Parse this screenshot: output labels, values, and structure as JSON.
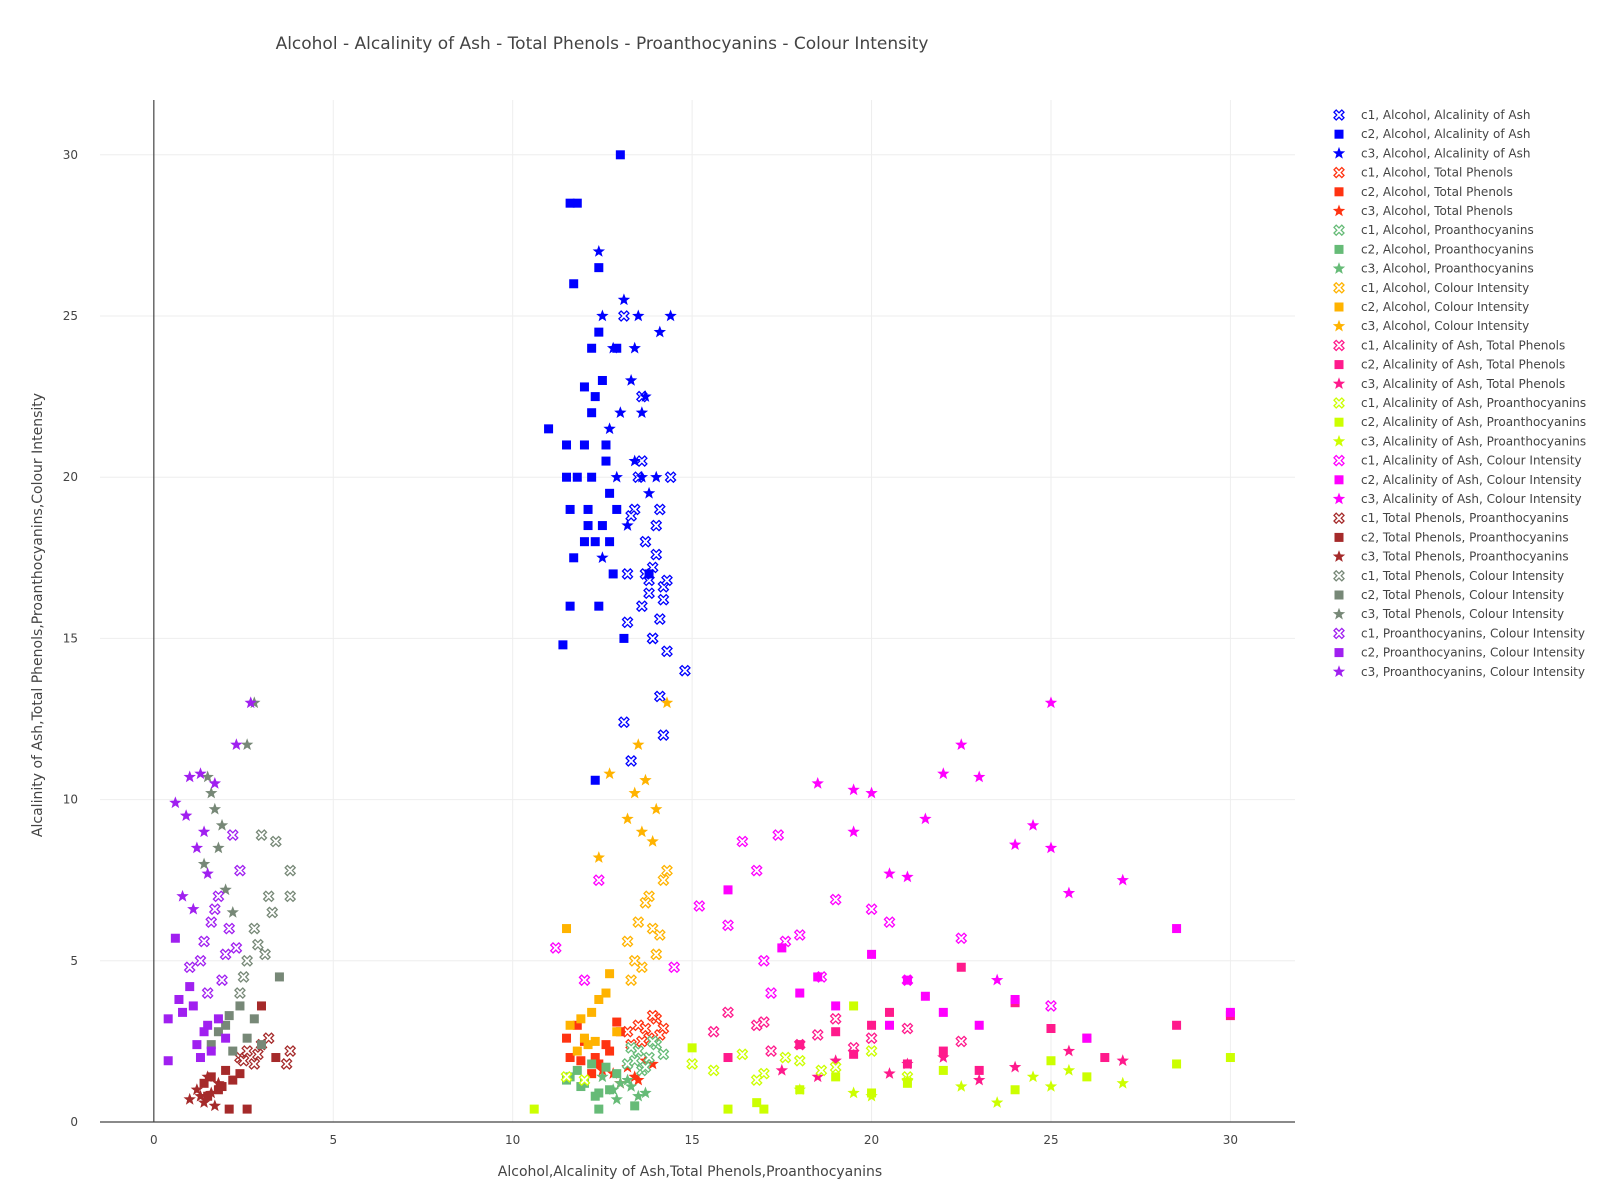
{
  "chart_data": {
    "type": "scatter",
    "title": "Alcohol - Alcalinity of Ash - Total Phenols - Proanthocyanins - Colour Intensity",
    "xlabel": "Alcohol,Alcalinity of Ash,Total Phenols,Proanthocyanins",
    "ylabel": "Alcalinity of Ash,Total Phenols,Proanthocyanins,Colour Intensity",
    "xlim": [
      -1.5,
      31.8
    ],
    "ylim": [
      0,
      31.7
    ],
    "x_ticks": [
      0,
      5,
      10,
      15,
      20,
      25,
      30
    ],
    "y_ticks": [
      0,
      5,
      10,
      15,
      20,
      25,
      30
    ],
    "grid": true,
    "legend_position": "right",
    "series": [
      {
        "name": "c1, Alcohol, Alcalinity of Ash",
        "color": "#0000ff",
        "marker": "x-open",
        "x": [
          13.1,
          13.2,
          13.6,
          13.8,
          13.9,
          14.1,
          14.2,
          13.4,
          13.5,
          13.7,
          13.8,
          14.0,
          14.1,
          14.3,
          13.9,
          14.2,
          13.3,
          13.6,
          14.1,
          13.2,
          13.7,
          14.0,
          14.4,
          13.3,
          14.8,
          14.2,
          14.3,
          13.1,
          13.6,
          13.9
        ],
        "y": [
          25.0,
          17.0,
          16.0,
          16.8,
          15.0,
          13.2,
          12.0,
          19.0,
          20.0,
          18.0,
          16.4,
          17.6,
          15.6,
          14.6,
          17.2,
          16.6,
          11.2,
          20.5,
          19.0,
          15.5,
          17.0,
          18.5,
          20.0,
          18.8,
          14.0,
          16.2,
          16.8,
          12.4,
          22.5,
          15.0
        ]
      },
      {
        "name": "c2, Alcohol, Alcalinity of Ash",
        "color": "#0000ff",
        "marker": "square",
        "x": [
          13.0,
          11.6,
          11.8,
          12.4,
          11.7,
          12.2,
          12.4,
          12.0,
          12.5,
          12.3,
          11.0,
          11.5,
          12.0,
          12.6,
          12.2,
          11.8,
          12.7,
          12.9,
          11.6,
          12.1,
          12.5,
          12.3,
          12.0,
          11.7,
          12.8,
          12.4,
          13.1,
          11.4,
          12.7,
          13.8,
          12.3,
          11.5,
          12.6,
          12.2,
          12.9,
          12.1,
          11.6
        ],
        "y": [
          30.0,
          28.5,
          28.5,
          26.5,
          26.0,
          24.0,
          24.5,
          22.8,
          23.0,
          22.5,
          21.5,
          21.0,
          21.0,
          20.5,
          20.0,
          20.0,
          19.5,
          19.0,
          19.0,
          18.5,
          18.5,
          18.0,
          18.0,
          17.5,
          17.0,
          16.0,
          15.0,
          14.8,
          18.0,
          17.0,
          10.6,
          20.0,
          21.0,
          22.0,
          24.0,
          19.0,
          16.0
        ],
        "_note": ""
      },
      {
        "name": "c3, Alcohol, Alcalinity of Ash",
        "color": "#0000ff",
        "marker": "star",
        "x": [
          12.4,
          13.1,
          12.5,
          13.5,
          14.4,
          12.8,
          13.4,
          13.7,
          13.0,
          13.3,
          14.1,
          13.6,
          12.7,
          13.2,
          12.9,
          12.5,
          13.8,
          14.0,
          13.4,
          13.6
        ],
        "y": [
          27.0,
          25.5,
          25.0,
          25.0,
          25.0,
          24.0,
          24.0,
          22.5,
          22.0,
          23.0,
          24.5,
          20.0,
          21.5,
          18.5,
          20.0,
          17.5,
          19.5,
          20.0,
          20.5,
          22.0
        ]
      },
      {
        "name": "c1, Alcohol, Total Phenols",
        "color": "#ff3311",
        "marker": "x-open",
        "x": [
          13.2,
          13.5,
          13.8,
          14.0,
          14.2,
          13.6,
          13.9,
          14.1,
          13.3,
          13.7
        ],
        "y": [
          2.8,
          3.0,
          2.6,
          3.2,
          2.9,
          2.5,
          3.3,
          2.7,
          2.4,
          2.9
        ]
      },
      {
        "name": "c2, Alcohol, Total Phenols",
        "color": "#ff3311",
        "marker": "square",
        "x": [
          11.6,
          12.0,
          12.4,
          11.8,
          12.7,
          13.0,
          12.2,
          11.5,
          12.9,
          12.3,
          11.9,
          12.6
        ],
        "y": [
          2.0,
          2.5,
          1.8,
          3.0,
          2.2,
          2.8,
          1.5,
          2.6,
          3.1,
          2.0,
          1.9,
          2.4
        ]
      },
      {
        "name": "c3, Alcohol, Total Phenols",
        "color": "#ff3311",
        "marker": "star",
        "x": [
          12.8,
          13.2,
          13.5,
          13.7,
          12.5,
          13.0,
          13.4,
          13.9
        ],
        "y": [
          1.5,
          1.7,
          1.3,
          1.9,
          1.6,
          1.2,
          1.4,
          1.8
        ]
      },
      {
        "name": "c1, Alcohol, Proanthocyanins",
        "color": "#66bb77",
        "marker": "x-open",
        "x": [
          13.2,
          13.5,
          13.8,
          14.0,
          13.6,
          14.2,
          13.4,
          13.9,
          13.3,
          13.7
        ],
        "y": [
          1.8,
          2.2,
          2.0,
          2.4,
          1.6,
          2.1,
          1.9,
          2.5,
          2.3,
          1.7
        ]
      },
      {
        "name": "c2, Alcohol, Proanthocyanins",
        "color": "#66bb77",
        "marker": "square",
        "x": [
          11.6,
          12.0,
          12.4,
          11.8,
          12.7,
          12.2,
          11.5,
          12.9,
          12.3,
          11.9,
          12.6,
          13.4,
          12.4
        ],
        "y": [
          1.4,
          1.2,
          0.9,
          1.6,
          1.0,
          1.8,
          1.3,
          1.5,
          0.8,
          1.1,
          1.7,
          0.5,
          0.4
        ]
      },
      {
        "name": "c3, Alcohol, Proanthocyanins",
        "color": "#66bb77",
        "marker": "star",
        "x": [
          12.8,
          13.2,
          13.5,
          13.0,
          12.5,
          13.7,
          12.9,
          13.3
        ],
        "y": [
          1.0,
          1.3,
          0.8,
          1.2,
          1.4,
          0.9,
          0.7,
          1.1
        ]
      },
      {
        "name": "c1, Alcohol, Colour Intensity",
        "color": "#ffb300",
        "marker": "x-open",
        "x": [
          13.2,
          13.5,
          13.8,
          14.0,
          14.2,
          13.6,
          13.9,
          14.1,
          13.3,
          13.7,
          14.3,
          13.4
        ],
        "y": [
          5.6,
          6.2,
          7.0,
          5.2,
          7.5,
          4.8,
          6.0,
          5.8,
          4.4,
          6.8,
          7.8,
          5.0
        ]
      },
      {
        "name": "c2, Alcohol, Colour Intensity",
        "color": "#ffb300",
        "marker": "square",
        "x": [
          11.6,
          12.0,
          12.4,
          11.8,
          12.7,
          12.2,
          11.5,
          12.9,
          12.3,
          11.9,
          12.6,
          12.1
        ],
        "y": [
          3.0,
          2.6,
          3.8,
          2.2,
          4.6,
          3.4,
          6.0,
          2.8,
          2.5,
          3.2,
          4.0,
          2.4
        ]
      },
      {
        "name": "c3, Alcohol, Colour Intensity",
        "color": "#ffb300",
        "marker": "star",
        "x": [
          14.3,
          13.5,
          13.7,
          13.4,
          14.0,
          12.7,
          13.2,
          13.6,
          12.4,
          13.9
        ],
        "y": [
          13.0,
          11.7,
          10.6,
          10.2,
          9.7,
          10.8,
          9.4,
          9.0,
          8.2,
          8.7
        ]
      },
      {
        "name": "c1, Alcalinity of Ash, Total Phenols",
        "color": "#ff1a8c",
        "marker": "x-open",
        "x": [
          15.6,
          16.8,
          18.0,
          19.0,
          20.0,
          21.0,
          16.0,
          17.2,
          18.5,
          22.5,
          17.0,
          19.5
        ],
        "y": [
          2.8,
          3.0,
          2.4,
          3.2,
          2.6,
          2.9,
          3.4,
          2.2,
          2.7,
          2.5,
          3.1,
          2.3
        ]
      },
      {
        "name": "c2, Alcalinity of Ash, Total Phenols",
        "color": "#ff1a8c",
        "marker": "square",
        "x": [
          16.0,
          18.0,
          19.0,
          20.0,
          21.0,
          22.0,
          23.0,
          24.0,
          25.0,
          26.0,
          26.5,
          28.5,
          30.0,
          22.5,
          19.5,
          20.5
        ],
        "y": [
          2.0,
          2.4,
          2.8,
          3.0,
          1.8,
          2.2,
          1.6,
          3.7,
          2.9,
          2.6,
          2.0,
          3.0,
          3.3,
          4.8,
          2.1,
          3.4
        ]
      },
      {
        "name": "c3, Alcalinity of Ash, Total Phenols",
        "color": "#ff1a8c",
        "marker": "star",
        "x": [
          17.5,
          19.0,
          20.5,
          22.0,
          24.0,
          25.5,
          27.0,
          18.5,
          21.0,
          23.0
        ],
        "y": [
          1.6,
          1.9,
          1.5,
          2.0,
          1.7,
          2.2,
          1.9,
          1.4,
          1.8,
          1.3
        ]
      },
      {
        "name": "c1, Alcalinity of Ash, Proanthocyanins",
        "color": "#ccff00",
        "marker": "x-open",
        "x": [
          15.0,
          15.6,
          16.4,
          17.0,
          18.0,
          19.0,
          20.0,
          21.0,
          16.8,
          17.6,
          18.6,
          11.5,
          12.0
        ],
        "y": [
          1.8,
          1.6,
          2.1,
          1.5,
          1.9,
          1.7,
          2.2,
          1.4,
          1.3,
          2.0,
          1.6,
          1.4,
          1.3
        ]
      },
      {
        "name": "c2, Alcalinity of Ash, Proanthocyanins",
        "color": "#ccff00",
        "marker": "square",
        "x": [
          10.6,
          15.0,
          16.0,
          16.8,
          17.0,
          18.0,
          19.0,
          19.5,
          20.0,
          21.0,
          22.0,
          24.0,
          25.0,
          26.0,
          28.5,
          30.0
        ],
        "y": [
          0.4,
          2.3,
          0.4,
          0.6,
          0.4,
          1.0,
          1.4,
          3.6,
          0.9,
          1.2,
          1.6,
          1.0,
          1.9,
          1.4,
          1.8,
          2.0
        ]
      },
      {
        "name": "c3, Alcalinity of Ash, Proanthocyanins",
        "color": "#ccff00",
        "marker": "star",
        "x": [
          18.0,
          19.5,
          21.0,
          22.5,
          23.5,
          24.5,
          25.0,
          25.5,
          27.0,
          20.0
        ],
        "y": [
          1.0,
          0.9,
          1.3,
          1.1,
          0.6,
          1.4,
          1.1,
          1.6,
          1.2,
          0.8
        ]
      },
      {
        "name": "c1, Alcalinity of Ash, Colour Intensity",
        "color": "#ff00ff",
        "marker": "x-open",
        "x": [
          11.2,
          12.0,
          12.4,
          15.2,
          16.0,
          16.4,
          16.8,
          17.0,
          17.4,
          17.6,
          18.0,
          18.6,
          19.0,
          20.0,
          20.5,
          21.0,
          22.5,
          25.0,
          14.5,
          17.2
        ],
        "y": [
          5.4,
          4.4,
          7.5,
          6.7,
          6.1,
          8.7,
          7.8,
          5.0,
          8.9,
          5.6,
          5.8,
          4.5,
          6.9,
          6.6,
          6.2,
          4.4,
          5.7,
          3.6,
          4.8,
          4.0
        ]
      },
      {
        "name": "c2, Alcalinity of Ash, Colour Intensity",
        "color": "#ff00ff",
        "marker": "square",
        "x": [
          16.0,
          17.5,
          18.0,
          19.0,
          20.0,
          21.0,
          22.0,
          23.0,
          24.0,
          26.0,
          28.5,
          30.0,
          20.5,
          18.5,
          21.5
        ],
        "y": [
          7.2,
          5.4,
          4.0,
          3.6,
          5.2,
          4.4,
          3.4,
          3.0,
          3.8,
          2.6,
          6.0,
          3.4,
          3.0,
          4.5,
          3.9
        ]
      },
      {
        "name": "c3, Alcalinity of Ash, Colour Intensity",
        "color": "#ff00ff",
        "marker": "star",
        "x": [
          18.5,
          19.5,
          20.0,
          20.5,
          21.0,
          21.5,
          22.0,
          22.5,
          23.0,
          24.0,
          24.5,
          25.0,
          25.5,
          27.0,
          25.0,
          23.5,
          19.5
        ],
        "y": [
          10.5,
          10.3,
          10.2,
          7.7,
          7.6,
          9.4,
          10.8,
          11.7,
          10.7,
          8.6,
          9.2,
          8.5,
          7.1,
          7.5,
          13.0,
          4.4,
          9.0
        ]
      },
      {
        "name": "c1, Total Phenols, Proanthocyanins",
        "color": "#a52a2a",
        "marker": "x-open",
        "x": [
          2.4,
          2.6,
          2.8,
          3.0,
          3.2,
          2.5,
          2.9,
          3.8,
          3.7
        ],
        "y": [
          2.0,
          2.2,
          1.8,
          2.4,
          2.6,
          1.9,
          2.1,
          2.2,
          1.8
        ]
      },
      {
        "name": "c2, Total Phenols, Proanthocyanins",
        "color": "#a52a2a",
        "marker": "square",
        "x": [
          1.4,
          1.6,
          1.8,
          2.0,
          2.2,
          1.5,
          1.9,
          2.1,
          2.6,
          2.4,
          3.0,
          3.4
        ],
        "y": [
          1.2,
          1.4,
          1.0,
          1.6,
          1.3,
          0.8,
          1.1,
          0.4,
          0.4,
          1.5,
          3.6,
          2.0
        ]
      },
      {
        "name": "c3, Total Phenols, Proanthocyanins",
        "color": "#a52a2a",
        "marker": "star",
        "x": [
          1.0,
          1.2,
          1.4,
          1.6,
          1.8,
          1.3,
          1.5,
          1.7
        ],
        "y": [
          0.7,
          1.0,
          0.6,
          0.9,
          1.2,
          0.8,
          1.4,
          0.5
        ]
      },
      {
        "name": "c1, Total Phenols, Colour Intensity",
        "color": "#778877",
        "marker": "x-open",
        "x": [
          2.4,
          2.6,
          2.8,
          3.0,
          3.2,
          3.4,
          3.8,
          3.8,
          2.9,
          3.3,
          2.5,
          3.1
        ],
        "y": [
          4.0,
          5.0,
          6.0,
          8.9,
          7.0,
          8.7,
          7.8,
          7.0,
          5.5,
          6.5,
          4.5,
          5.2
        ]
      },
      {
        "name": "c2, Total Phenols, Colour Intensity",
        "color": "#778877",
        "marker": "square",
        "x": [
          1.6,
          1.8,
          2.0,
          2.2,
          2.4,
          2.6,
          2.8,
          3.0,
          3.5,
          2.1
        ],
        "y": [
          2.4,
          2.8,
          3.0,
          2.2,
          3.6,
          2.6,
          3.2,
          2.4,
          4.5,
          3.3
        ]
      },
      {
        "name": "c3, Total Phenols, Colour Intensity",
        "color": "#778877",
        "marker": "star",
        "x": [
          2.8,
          2.6,
          1.5,
          1.6,
          1.9,
          1.8,
          1.4,
          1.7,
          2.0,
          2.2
        ],
        "y": [
          13.0,
          11.7,
          10.7,
          10.2,
          9.2,
          8.5,
          8.0,
          9.7,
          7.2,
          6.5
        ]
      },
      {
        "name": "c1, Proanthocyanins, Colour Intensity",
        "color": "#a020f0",
        "marker": "x-open",
        "x": [
          1.0,
          1.4,
          1.6,
          1.8,
          2.0,
          2.2,
          2.4,
          1.7,
          1.9,
          2.1,
          2.3,
          1.5,
          1.3
        ],
        "y": [
          4.8,
          5.6,
          6.2,
          7.0,
          5.2,
          8.9,
          7.8,
          6.6,
          4.4,
          6.0,
          5.4,
          4.0,
          5.0
        ]
      },
      {
        "name": "c2, Proanthocyanins, Colour Intensity",
        "color": "#a020f0",
        "marker": "square",
        "x": [
          0.4,
          0.4,
          0.6,
          0.7,
          0.8,
          1.0,
          1.2,
          1.4,
          1.5,
          1.6,
          1.8,
          2.0,
          1.1,
          1.3
        ],
        "y": [
          3.2,
          1.9,
          5.7,
          3.8,
          3.4,
          4.2,
          2.4,
          2.8,
          3.0,
          2.2,
          3.2,
          2.6,
          3.6,
          2.0
        ]
      },
      {
        "name": "c3, Proanthocyanins, Colour Intensity",
        "color": "#a020f0",
        "marker": "star",
        "x": [
          2.7,
          2.3,
          1.3,
          1.0,
          0.6,
          0.9,
          1.2,
          1.5,
          1.7,
          1.4,
          0.8,
          1.1
        ],
        "y": [
          13.0,
          11.7,
          10.8,
          10.7,
          9.9,
          9.5,
          8.5,
          7.7,
          10.5,
          9.0,
          7.0,
          6.6
        ]
      }
    ]
  }
}
